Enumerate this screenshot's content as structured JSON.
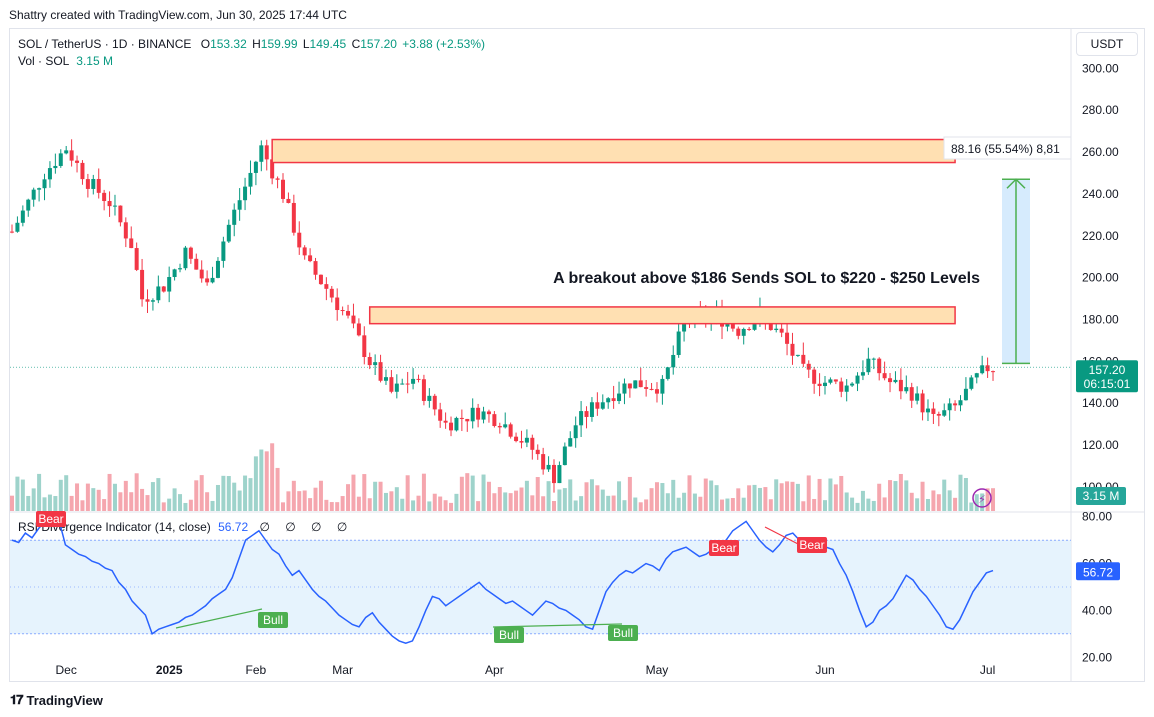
{
  "credit": "Shattry created with TradingView.com, Jun 30, 2025 17:44 UTC",
  "legend": {
    "symbol": "SOL / TetherUS · 1D · BINANCE",
    "o_label": "O",
    "o": "153.32",
    "h_label": "H",
    "h": "159.99",
    "l_label": "L",
    "l": "149.45",
    "c_label": "C",
    "c": "157.20",
    "change": "+3.88 (+2.53%)",
    "vol_label": "Vol · SOL",
    "vol": "3.15 M"
  },
  "currency": "USDT",
  "rsi_legend": {
    "label": "RSI Divergence Indicator (14, close)",
    "value": "56.72",
    "icons": "∅ ∅ ∅ ∅"
  },
  "footer": "TradingView",
  "annotation_text": "A breakout above $186 Sends SOL to $220 - $250 Levels",
  "measure_label": "88.16 (55.54%) 8,81",
  "price_badge": {
    "price": "157.20",
    "countdown": "06:15:01"
  },
  "volume_badge": "3.15 M",
  "rsi_badge": "56.72",
  "colors": {
    "up": "#089981",
    "down": "#f23645",
    "up_vol": "#9ed3cb",
    "down_vol": "#f5a6ae",
    "rsi": "#2962ff",
    "bull": "#4caf50",
    "bear": "#f23645",
    "zone_fill": "#ffe0b2",
    "zone_stroke": "#f23645",
    "measure": "#4caf50",
    "measure_fill": "#bbdefb"
  },
  "chart_data": {
    "type": "candlestick",
    "price_axis": {
      "ticks": [
        "300.00",
        "280.00",
        "260.00",
        "240.00",
        "220.00",
        "200.00",
        "180.00",
        "160.00",
        "140.00",
        "120.00",
        "100.00"
      ],
      "range": [
        88,
        304
      ]
    },
    "rsi_axis": {
      "ticks": [
        "80.00",
        "60.00",
        "40.00",
        "20.00"
      ],
      "range": [
        18,
        82
      ],
      "band": [
        30,
        70
      ]
    },
    "time_axis": [
      {
        "label": "Dec",
        "index": 10
      },
      {
        "label": "2025",
        "index": 29,
        "bold": true
      },
      {
        "label": "Feb",
        "index": 45
      },
      {
        "label": "Mar",
        "index": 61
      },
      {
        "label": "Apr",
        "index": 89
      },
      {
        "label": "May",
        "index": 119
      },
      {
        "label": "Jun",
        "index": 150
      },
      {
        "label": "Jul",
        "index": 180
      }
    ],
    "resistance_zones": [
      {
        "low": 255,
        "high": 266,
        "start_index": 48,
        "end_index": 174
      },
      {
        "low": 178,
        "high": 186,
        "start_index": 66,
        "end_index": 174
      }
    ],
    "measure": {
      "from": 159,
      "to": 247,
      "change": 88.16,
      "change_pct": 55.54
    },
    "divergences": [
      {
        "type": "Bear",
        "x0": 0,
        "y0": 78,
        "x1": 6,
        "y1": 78,
        "label_index": 2
      },
      {
        "type": "Bull",
        "x0": 21,
        "y0": 30,
        "x1": 33,
        "y1": 38,
        "label_index": 33
      },
      {
        "type": "Bull",
        "x0": 59,
        "y0": 26,
        "x1": 80,
        "y1": 30,
        "label_index": 64
      },
      {
        "type": "Bear",
        "x0": 124,
        "y0": 78,
        "x1": 131,
        "y1": 71,
        "label_index": 115
      },
      {
        "type": "Bear",
        "x0": 124,
        "y0": 78,
        "x1": 131,
        "y1": 71,
        "label_index": 132
      }
    ],
    "rsi_points": [
      70,
      69,
      73,
      71,
      75,
      78,
      77,
      79,
      68,
      66,
      64,
      63,
      61,
      60,
      58,
      57,
      52,
      49,
      44,
      41,
      38,
      30,
      32,
      33,
      34,
      35,
      37,
      38,
      40,
      42,
      45,
      47,
      49,
      54,
      62,
      70,
      72,
      74,
      70,
      66,
      64,
      59,
      55,
      57,
      53,
      49,
      46,
      44,
      41,
      38,
      36,
      34,
      33,
      37,
      39,
      35,
      32,
      29,
      27,
      26,
      27,
      33,
      40,
      46,
      45,
      42,
      44,
      46,
      48,
      50,
      52,
      49,
      47,
      45,
      43,
      44,
      42,
      40,
      38,
      41,
      44,
      43,
      41,
      40,
      38,
      36,
      33,
      32,
      40,
      48,
      52,
      55,
      57,
      56,
      58,
      60,
      59,
      57,
      62,
      65,
      66,
      67,
      65,
      63,
      64,
      66,
      68,
      70,
      74,
      76,
      78,
      74,
      70,
      67,
      65,
      68,
      72,
      73,
      70,
      68,
      66,
      65,
      67,
      66,
      60,
      55,
      48,
      40,
      33,
      35,
      40,
      42,
      45,
      50,
      55,
      53,
      49,
      46,
      42,
      38,
      33,
      32,
      36,
      42,
      48,
      52,
      56,
      57
    ]
  }
}
